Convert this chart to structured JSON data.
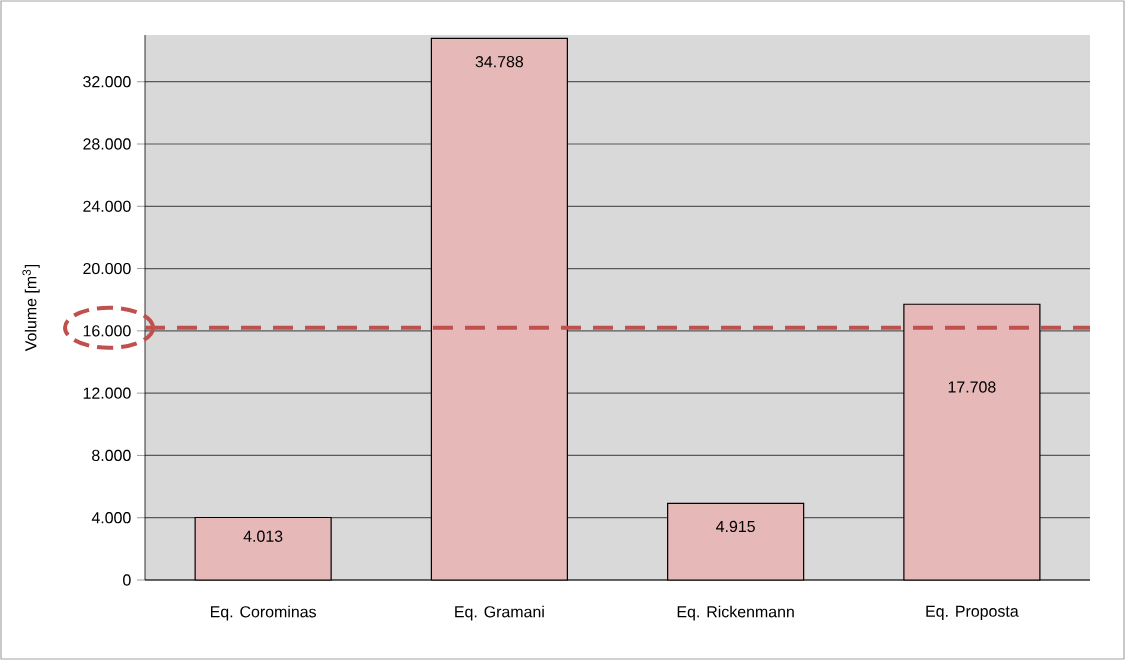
{
  "chart_data": {
    "type": "bar",
    "ylabel": "Volume [m$^{3}$]",
    "categories": [
      "Eq. Corominas",
      "Eq. Gramani",
      "Eq. Rickenmann",
      "Eq. Proposta"
    ],
    "values": [
      4013,
      34788,
      4915,
      17708
    ],
    "value_labels": [
      "4.013",
      "34.788",
      "4.915",
      "17.708"
    ],
    "color": "#e6b9b8",
    "ylim": [
      0,
      35000
    ],
    "yticks": [
      {
        "value": 0,
        "label": "0"
      },
      {
        "value": 4000,
        "label": "4.000"
      },
      {
        "value": 8000,
        "label": "8.000"
      },
      {
        "value": 12000,
        "label": "12.000"
      },
      {
        "value": 16000,
        "label": "16.000"
      },
      {
        "value": 20000,
        "label": "20.000"
      },
      {
        "value": 24000,
        "label": "24.000"
      },
      {
        "value": 28000,
        "label": "28.000"
      },
      {
        "value": 32000,
        "label": "32.000"
      }
    ],
    "grid": "y",
    "ref_lines": [
      {
        "axis": "y",
        "value": 16200,
        "color": "#c0504d",
        "line_style": "dashed"
      }
    ]
  }
}
